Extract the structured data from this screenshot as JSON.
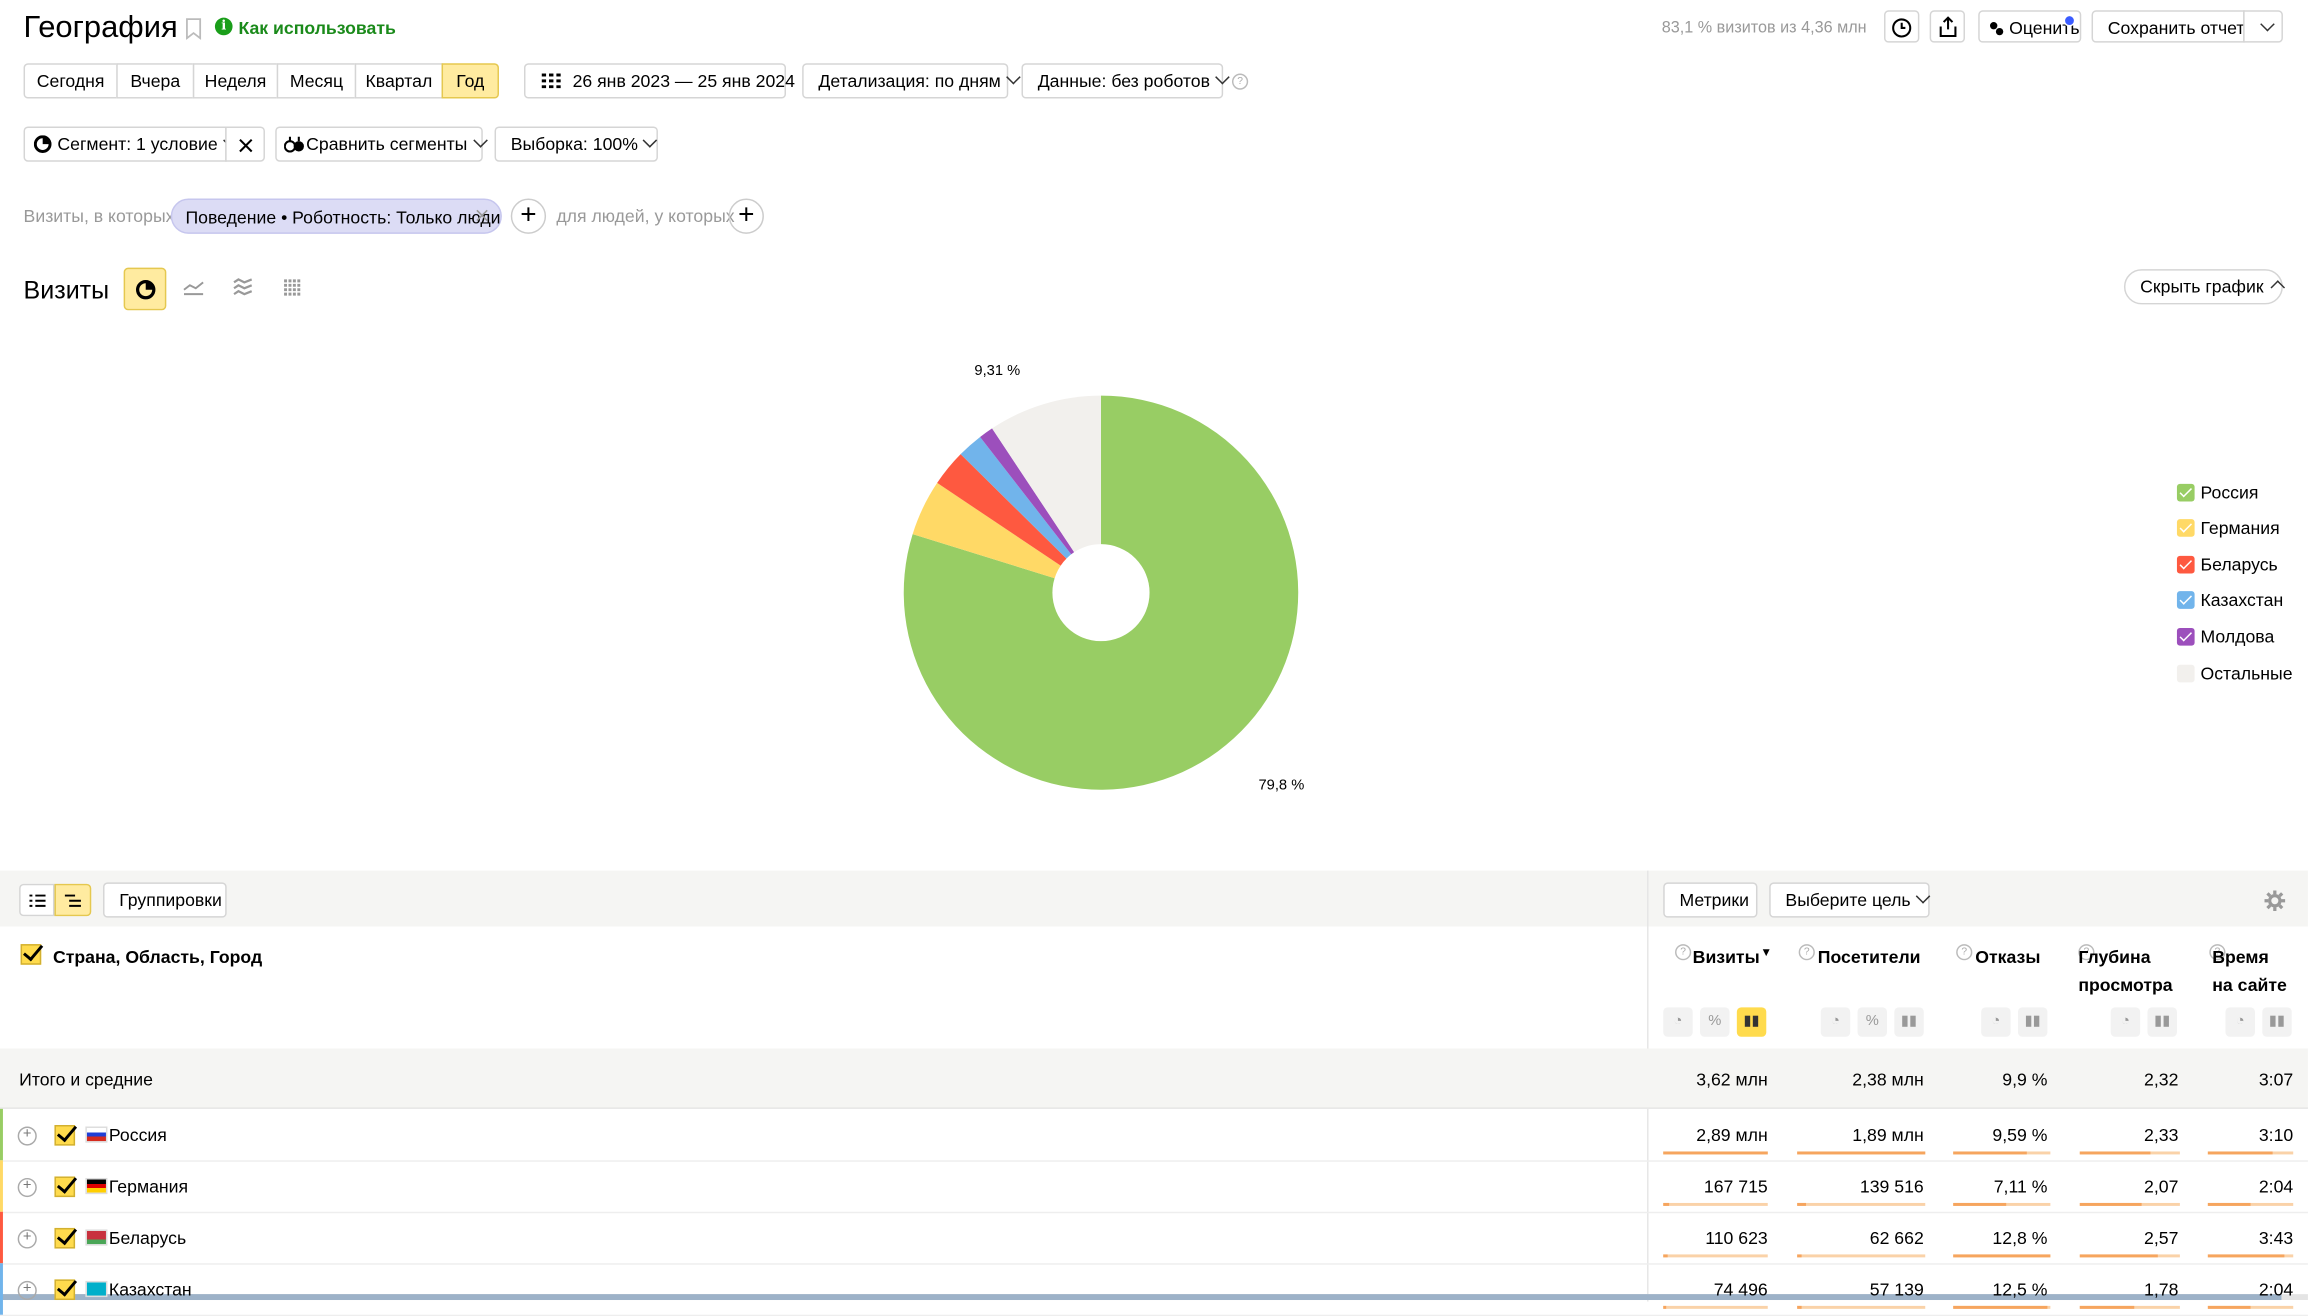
{
  "header": {
    "title": "География",
    "how_to_use": "Как использовать",
    "sampling_info": "83,1 % визитов из 4,36 млн",
    "rate_label": "Оценить",
    "save_report_label": "Сохранить отчет"
  },
  "periods": [
    {
      "label": "Сегодня",
      "active": false
    },
    {
      "label": "Вчера",
      "active": false
    },
    {
      "label": "Неделя",
      "active": false
    },
    {
      "label": "Месяц",
      "active": false
    },
    {
      "label": "Квартал",
      "active": false
    },
    {
      "label": "Год",
      "active": true
    }
  ],
  "date_range": "26 янв 2023 — 25 янв 2024",
  "detail_label": "Детализация: по дням",
  "data_label": "Данные: без роботов",
  "segment": {
    "segment_label": "Сегмент: 1 условие",
    "compare_label": "Сравнить сегменты",
    "sample_label": "Выборка: 100%"
  },
  "filter": {
    "prefix": "Визиты, в которых",
    "chip": "Поведение • Роботность: Только люди",
    "people_prefix": "для людей, у которых"
  },
  "chart_header": {
    "title": "Визиты",
    "hide_chart_label": "Скрыть график"
  },
  "chart_data": {
    "type": "pie",
    "slices": [
      {
        "label": "Россия",
        "value": 79.8,
        "color": "#98cd64"
      },
      {
        "label": "Германия",
        "value": 4.6,
        "color": "#ffd966"
      },
      {
        "label": "Беларусь",
        "value": 3.0,
        "color": "#fe5940"
      },
      {
        "label": "Казахстан",
        "value": 2.1,
        "color": "#71b4eb"
      },
      {
        "label": "Молдова",
        "value": 1.19,
        "color": "#9c4fbc"
      },
      {
        "label": "Остальные",
        "value": 9.31,
        "color": "#f2f0ed"
      }
    ],
    "data_labels": [
      "79,8 %",
      "9,31 %"
    ],
    "legend_position": "right",
    "donut_hole": true
  },
  "table_toolbar": {
    "groupings_label": "Группировки",
    "metrics_label": "Метрики",
    "goal_label": "Выберите цель"
  },
  "table": {
    "dimension_header": "Страна, Область, Город",
    "columns": [
      {
        "line1": "Визиты",
        "line2": "",
        "sorted": true
      },
      {
        "line1": "Посетители",
        "line2": ""
      },
      {
        "line1": "Отказы",
        "line2": ""
      },
      {
        "line1": "Глубина",
        "line2": "просмотра"
      },
      {
        "line1": "Время",
        "line2": "на сайте"
      }
    ],
    "totals": {
      "label": "Итого и средние",
      "values": [
        "3,62 млн",
        "2,38 млн",
        "9,9 %",
        "2,32",
        "3:07"
      ]
    },
    "rows": [
      {
        "name": "Россия",
        "stripe": "#98cd64",
        "values": [
          "2,89 млн",
          "1,89 млн",
          "9,59 %",
          "2,33",
          "3:10"
        ],
        "fractions": [
          1.0,
          1.0,
          0.75,
          0.7,
          0.75
        ]
      },
      {
        "name": "Германия",
        "stripe": "#ffd966",
        "values": [
          "167 715",
          "139 516",
          "7,11 %",
          "2,07",
          "2:04"
        ],
        "fractions": [
          0.06,
          0.07,
          0.55,
          0.62,
          0.5
        ]
      },
      {
        "name": "Беларусь",
        "stripe": "#fe5940",
        "values": [
          "110 623",
          "62 662",
          "12,8 %",
          "2,57",
          "3:43"
        ],
        "fractions": [
          0.04,
          0.03,
          1.0,
          0.78,
          0.9
        ]
      },
      {
        "name": "Казахстан",
        "stripe": "#71b4eb",
        "values": [
          "74 496",
          "57 139",
          "12,5 %",
          "1,78",
          "2:04"
        ],
        "fractions": [
          0.03,
          0.03,
          0.97,
          0.55,
          0.5
        ]
      }
    ]
  }
}
